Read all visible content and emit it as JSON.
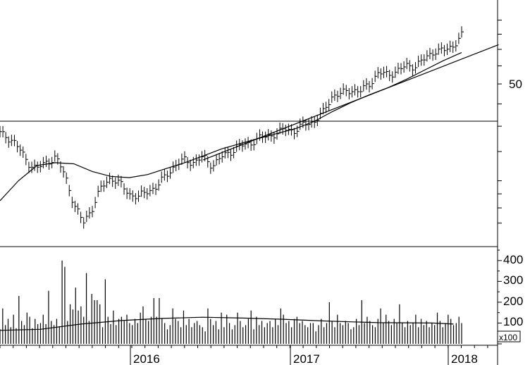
{
  "chart_data": [
    {
      "type": "ohlc-line",
      "panel": "price",
      "y_scale": "log",
      "y_tick_labels": [
        {
          "label": "50",
          "value": 50
        }
      ],
      "ylim": [
        22,
        75
      ],
      "x": [
        "2015-04",
        "2018-03"
      ],
      "series": [
        {
          "values": [
            [
              0,
              38.5
            ],
            [
              3,
              37
            ],
            [
              6,
              33
            ],
            [
              8,
              32
            ],
            [
              10,
              33
            ],
            [
              12,
              34
            ],
            [
              14,
              31
            ],
            [
              16,
              26.5
            ],
            [
              18,
              24
            ],
            [
              20,
              26
            ],
            [
              22,
              29
            ],
            [
              24,
              30.5
            ],
            [
              26,
              29.5
            ],
            [
              28,
              28
            ],
            [
              30,
              27.5
            ],
            [
              32,
              28.5
            ],
            [
              34,
              29
            ],
            [
              36,
              31
            ],
            [
              38,
              32.5
            ],
            [
              40,
              33.5
            ],
            [
              42,
              33
            ],
            [
              44,
              34
            ],
            [
              46,
              32.5
            ],
            [
              48,
              34
            ],
            [
              50,
              35
            ],
            [
              52,
              36
            ],
            [
              54,
              36.5
            ],
            [
              56,
              37.5
            ],
            [
              58,
              38
            ],
            [
              60,
              38.5
            ],
            [
              62,
              39.5
            ],
            [
              64,
              39
            ],
            [
              66,
              40.5
            ],
            [
              68,
              41
            ],
            [
              70,
              43
            ],
            [
              72,
              47
            ],
            [
              74,
              47.5
            ],
            [
              76,
              48.5
            ],
            [
              78,
              48
            ],
            [
              80,
              50
            ],
            [
              82,
              53
            ],
            [
              84,
              52.5
            ],
            [
              86,
              53.5
            ],
            [
              88,
              55
            ],
            [
              90,
              55
            ],
            [
              92,
              57
            ],
            [
              94,
              59.5
            ],
            [
              96,
              59.5
            ],
            [
              98,
              61
            ],
            [
              100,
              64.5
            ]
          ]
        },
        {
          "values": [
            [
              0,
              27
            ],
            [
              4,
              30
            ],
            [
              8,
              32.5
            ],
            [
              12,
              33
            ],
            [
              16,
              32.8
            ],
            [
              20,
              31.5
            ],
            [
              24,
              30.7
            ],
            [
              28,
              30.5
            ],
            [
              32,
              31
            ],
            [
              36,
              32
            ],
            [
              40,
              33
            ],
            [
              44,
              34.2
            ],
            [
              48,
              35.5
            ],
            [
              52,
              36.5
            ],
            [
              56,
              37.5
            ],
            [
              60,
              38.5
            ],
            [
              64,
              39.5
            ],
            [
              68,
              41
            ],
            [
              72,
              43.2
            ],
            [
              76,
              45.3
            ],
            [
              80,
              47.2
            ],
            [
              84,
              49
            ],
            [
              88,
              51.2
            ],
            [
              92,
              53.8
            ],
            [
              96,
              56.5
            ],
            [
              100,
              59
            ]
          ]
        },
        {
          "values": [
            [
              44,
              33.5
            ],
            [
              108,
              61.5
            ]
          ]
        }
      ],
      "horizontal_line": 38.8
    },
    {
      "type": "bar",
      "panel": "volume",
      "y_tick_labels": [
        "100",
        "200",
        "300",
        "400"
      ],
      "ylim": [
        0,
        450
      ],
      "axis_note": "x100",
      "x_tick_labels": [
        "2016",
        "2017",
        "2018"
      ],
      "values": [
        70,
        170,
        90,
        120,
        80,
        140,
        75,
        230,
        110,
        90,
        150,
        130,
        75,
        120,
        95,
        100,
        140,
        95,
        255,
        110,
        90,
        120,
        85,
        400,
        370,
        110,
        190,
        165,
        270,
        160,
        180,
        130,
        340,
        110,
        240,
        210,
        210,
        190,
        80,
        310,
        130,
        95,
        160,
        90,
        120,
        130,
        110,
        140,
        100,
        90,
        120,
        100,
        150,
        180,
        120,
        110,
        130,
        220,
        130,
        220,
        120,
        100,
        70,
        90,
        170,
        120,
        110,
        80,
        160,
        90,
        120,
        80,
        100,
        110,
        90,
        80,
        60,
        170,
        120,
        90,
        110,
        70,
        150,
        80,
        140,
        100,
        70,
        90,
        150,
        110,
        80,
        90,
        120,
        160,
        70,
        130,
        90,
        110,
        80,
        100,
        110,
        80,
        120,
        90,
        170,
        140,
        100,
        110,
        80,
        120,
        130,
        100,
        110,
        90,
        80,
        100,
        100,
        60,
        90,
        120,
        80,
        100,
        200,
        110,
        80,
        140,
        100,
        90,
        110,
        100,
        70,
        80,
        120,
        90,
        210,
        100,
        130,
        110,
        90,
        80,
        120,
        170,
        100,
        140,
        110,
        90,
        120,
        100,
        190,
        100,
        80,
        110,
        90,
        100,
        140,
        80,
        120,
        90,
        110,
        80,
        100,
        90,
        150,
        110,
        80,
        100,
        140,
        120,
        90,
        100,
        130,
        100
      ],
      "moving_average": [
        [
          0,
          65
        ],
        [
          15,
          70
        ],
        [
          30,
          95
        ],
        [
          45,
          112
        ],
        [
          60,
          122
        ],
        [
          75,
          128
        ],
        [
          90,
          124
        ],
        [
          105,
          118
        ],
        [
          120,
          110
        ],
        [
          140,
          102
        ],
        [
          160,
          100
        ],
        [
          168,
          95
        ]
      ]
    }
  ]
}
